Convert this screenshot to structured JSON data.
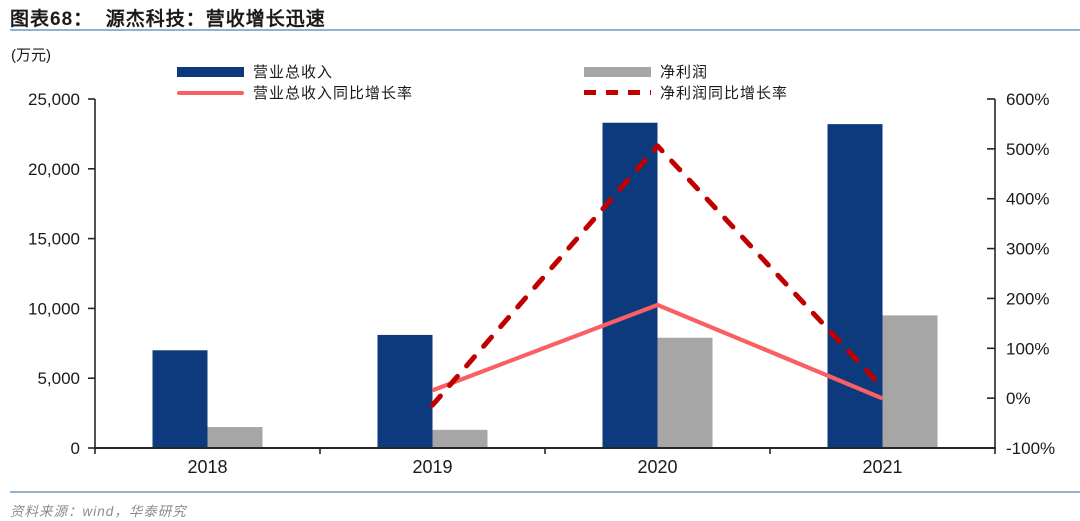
{
  "header": {
    "title": "图表68：  源杰科技：营收增长迅速"
  },
  "footer": {
    "source": "资料来源：wind，华泰研究"
  },
  "colors": {
    "accent_rule": "#8fb2d0",
    "axis": "#262626",
    "text": "#1a1a1a",
    "source_text": "#8c8c8c"
  },
  "chart_data": {
    "type": "bar",
    "subtype": "combo-bar-line-dual-axis",
    "title": "源杰科技：营收增长迅速",
    "unit_label": "(万元)",
    "categories": [
      "2018",
      "2019",
      "2020",
      "2021"
    ],
    "series": [
      {
        "name": "营业总收入",
        "type": "bar",
        "axis": "left",
        "color": "#0d3a7d",
        "values": [
          7000,
          8100,
          23300,
          23200
        ]
      },
      {
        "name": "净利润",
        "type": "bar",
        "axis": "left",
        "color": "#a6a6a6",
        "values": [
          1500,
          1300,
          7900,
          9500
        ]
      },
      {
        "name": "营业总收入同比增长率",
        "type": "line",
        "axis": "right",
        "dashed": false,
        "color": "#fa5f64",
        "values": [
          null,
          15.6,
          187,
          -0.5
        ]
      },
      {
        "name": "净利润同比增长率",
        "type": "line",
        "axis": "right",
        "dashed": true,
        "color": "#c00000",
        "values": [
          null,
          -14,
          506,
          21
        ]
      }
    ],
    "left_axis": {
      "min": 0,
      "max": 25000,
      "step": 5000,
      "tick_labels": [
        "0",
        "5,000",
        "10,000",
        "15,000",
        "20,000",
        "25,000"
      ]
    },
    "right_axis": {
      "min": -100,
      "max": 600,
      "step": 100,
      "tick_labels": [
        "-100%",
        "0%",
        "100%",
        "200%",
        "300%",
        "400%",
        "500%",
        "600%"
      ]
    },
    "grid": false,
    "legend_position": "top"
  }
}
